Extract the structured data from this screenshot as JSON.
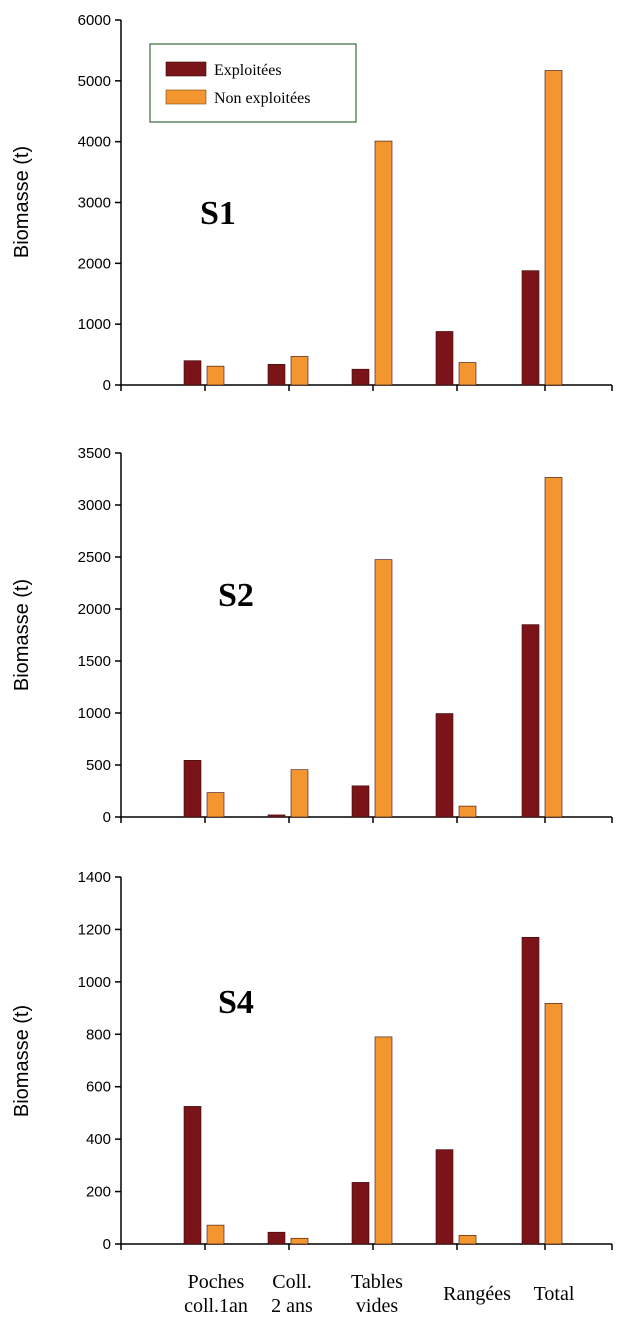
{
  "chart_data": [
    {
      "type": "bar",
      "panel_label": "S1",
      "categories": [
        "",
        "Poches coll.1an",
        "Coll. 2 ans",
        "Tables vides",
        "Rangées",
        "Total",
        ""
      ],
      "ylabel": "Biomasse (t)",
      "ylim": [
        0,
        6000
      ],
      "yticks": [
        0,
        1000,
        2000,
        3000,
        4000,
        5000,
        6000
      ],
      "series": [
        {
          "name": "Exploitées",
          "values": [
            0,
            400,
            340,
            260,
            880,
            1880,
            0
          ]
        },
        {
          "name": "Non exploitées",
          "values": [
            0,
            310,
            470,
            4010,
            370,
            5170,
            0
          ]
        }
      ],
      "legend": {
        "placement": "top-left",
        "entries": [
          "Exploitées",
          "Non exploitées"
        ]
      }
    },
    {
      "type": "bar",
      "panel_label": "S2",
      "categories": [
        "",
        "Poches coll.1an",
        "Coll. 2 ans",
        "Tables vides",
        "Rangées",
        "Total",
        ""
      ],
      "ylabel": "Biomasse (t)",
      "ylim": [
        0,
        3500
      ],
      "yticks": [
        0,
        500,
        1000,
        1500,
        2000,
        2500,
        3000,
        3500
      ],
      "series": [
        {
          "name": "Exploitées",
          "values": [
            0,
            545,
            20,
            300,
            995,
            1850,
            0
          ]
        },
        {
          "name": "Non exploitées",
          "values": [
            0,
            235,
            455,
            2475,
            105,
            3265,
            0
          ]
        }
      ]
    },
    {
      "type": "bar",
      "panel_label": "S4",
      "categories": [
        "",
        "Poches coll.1an",
        "Coll. 2 ans",
        "Tables vides",
        "Rangées",
        "Total",
        ""
      ],
      "ylabel": "Biomasse (t)",
      "ylim": [
        0,
        1400
      ],
      "yticks": [
        0,
        200,
        400,
        600,
        800,
        1000,
        1200,
        1400
      ],
      "series": [
        {
          "name": "Exploitées",
          "values": [
            0,
            525,
            45,
            235,
            360,
            1170,
            0
          ]
        },
        {
          "name": "Non exploitées",
          "values": [
            0,
            72,
            22,
            790,
            33,
            918,
            0
          ]
        }
      ]
    }
  ],
  "xaxis": {
    "category_lines": [
      [
        "Poches",
        "coll.1an"
      ],
      [
        "Coll.",
        "2 ans"
      ],
      [
        "Tables",
        "vides"
      ],
      [
        "Rangées"
      ],
      [
        "Total"
      ]
    ]
  },
  "colors": {
    "exploitees": "#7a1418",
    "non_exploitees": "#f3962f",
    "axis": "#000000"
  }
}
